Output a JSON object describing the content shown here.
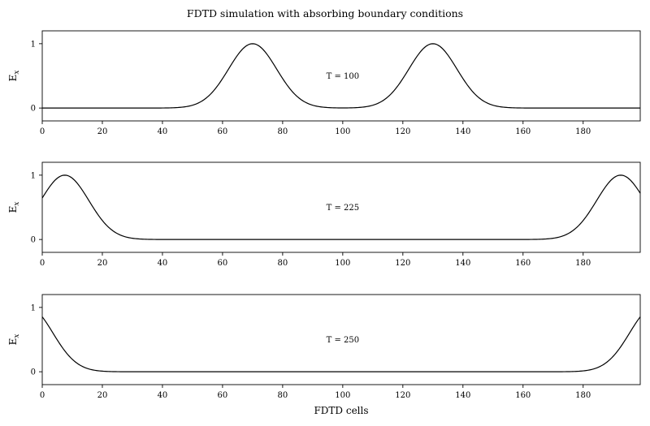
{
  "figure_title": "FDTD simulation with absorbing boundary conditions",
  "xlabel": "FDTD cells",
  "ylabel": "E_x",
  "chart_data": [
    {
      "type": "line",
      "annotation": "T = 100",
      "xlim": [
        0,
        199
      ],
      "ylim": [
        -0.2,
        1.2
      ],
      "xticks": [
        0,
        20,
        40,
        60,
        80,
        100,
        120,
        140,
        160,
        180
      ],
      "yticks": [
        0,
        1
      ],
      "series": [
        {
          "pulses": [
            {
              "center": 70,
              "width": 8,
              "amplitude": 1
            },
            {
              "center": 130,
              "width": 8,
              "amplitude": 1
            }
          ]
        }
      ]
    },
    {
      "type": "line",
      "annotation": "T = 225",
      "xlim": [
        0,
        199
      ],
      "ylim": [
        -0.2,
        1.2
      ],
      "xticks": [
        0,
        20,
        40,
        60,
        80,
        100,
        120,
        140,
        160,
        180
      ],
      "yticks": [
        0,
        1
      ],
      "series": [
        {
          "pulses": [
            {
              "center": 7.5,
              "width": 8,
              "amplitude": 1
            },
            {
              "center": 192.5,
              "width": 8,
              "amplitude": 1
            }
          ]
        }
      ]
    },
    {
      "type": "line",
      "annotation": "T = 250",
      "xlim": [
        0,
        199
      ],
      "ylim": [
        -0.2,
        1.2
      ],
      "xticks": [
        0,
        20,
        40,
        60,
        80,
        100,
        120,
        140,
        160,
        180
      ],
      "yticks": [
        0,
        1
      ],
      "series": [
        {
          "pulses": [
            {
              "center": -4.5,
              "width": 8,
              "amplitude": 1
            },
            {
              "center": 203.5,
              "width": 8,
              "amplitude": 1
            }
          ]
        }
      ]
    }
  ]
}
